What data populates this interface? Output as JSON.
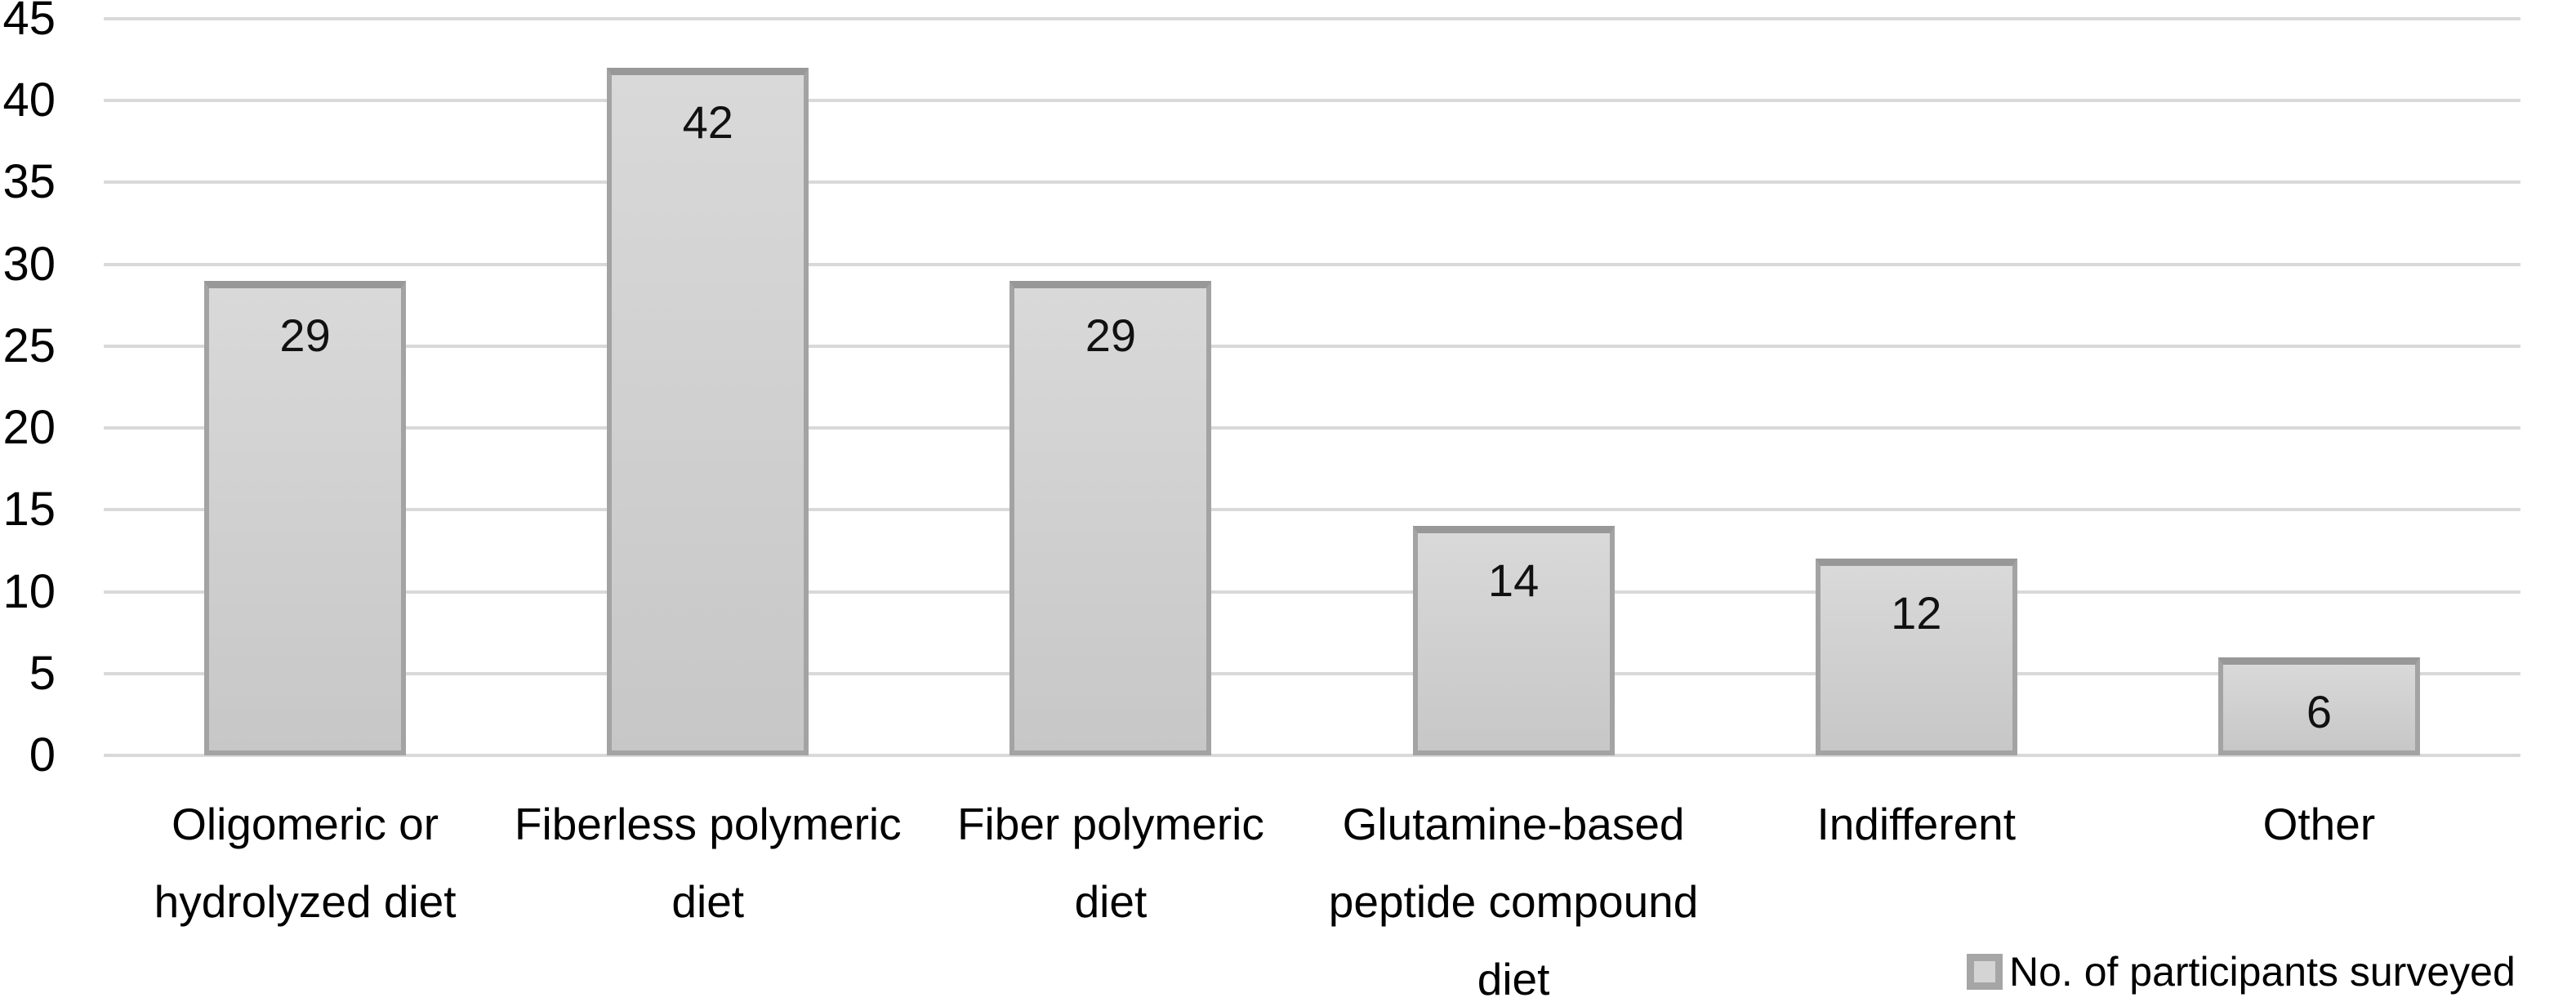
{
  "chart_data": {
    "type": "bar",
    "title": "",
    "xlabel": "",
    "ylabel": "",
    "categories": [
      "Oligomeric or hydrolyzed diet",
      "Fiberless polymeric diet",
      "Fiber polymeric diet",
      "Glutamine-based peptide compound diet",
      "Indifferent",
      "Other"
    ],
    "category_lines": [
      [
        "Oligomeric or",
        "hydrolyzed diet"
      ],
      [
        "Fiberless polymeric",
        "diet"
      ],
      [
        "Fiber polymeric",
        "diet"
      ],
      [
        "Glutamine-based",
        "peptide compound",
        "diet"
      ],
      [
        "Indifferent"
      ],
      [
        "Other"
      ]
    ],
    "values": [
      29,
      42,
      29,
      14,
      12,
      6
    ],
    "data_labels": [
      "29",
      "42",
      "29",
      "14",
      "12",
      "6"
    ],
    "series": [
      {
        "name": "No. of participants surveyed",
        "values": [
          29,
          42,
          29,
          14,
          12,
          6
        ]
      }
    ],
    "ylim": [
      0,
      45
    ],
    "ytick_step": 5,
    "yticks": [
      0,
      5,
      10,
      15,
      20,
      25,
      30,
      35,
      40,
      45
    ],
    "grid": true,
    "legend_position": "bottom-right"
  },
  "legend": {
    "label": "No. of participants surveyed",
    "swatch_icon": "gray-square-icon"
  },
  "colors": {
    "background": "#ffffff",
    "bar_fill_top": "#d9d9d9",
    "bar_fill_bottom": "#c7c7c7",
    "bar_border": "#a3a3a3",
    "bar_border_top": "#989898",
    "gridline": "#d9d9d9",
    "text": "#000000"
  }
}
